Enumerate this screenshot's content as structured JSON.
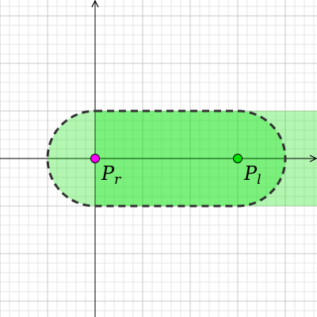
{
  "colors": {
    "minor_grid": "#e6e6e6",
    "major_grid": "#c8c8c8",
    "axis": "#000000",
    "band_fill": "#00e000",
    "band_fill_opacity": 0.3,
    "capsule_stroke": "#333333",
    "point_r_fill": "#ff00ff",
    "point_l_fill": "#00e600"
  },
  "axes": {
    "x_range": [
      -2,
      4.667
    ],
    "y_range": [
      -3.333,
      3.333
    ],
    "major_step": 1,
    "minor_step": 0.2
  },
  "band": {
    "x_start": 0,
    "y_min": -1,
    "y_max": 1
  },
  "capsule": {
    "center_a": [
      0,
      0
    ],
    "center_b": [
      3,
      0
    ],
    "radius": 1,
    "style": "dashed"
  },
  "points": [
    {
      "id": "P_r",
      "x": 0,
      "y": 0,
      "color": "#ff00ff",
      "label_main": "P",
      "label_sub": "r"
    },
    {
      "id": "P_l",
      "x": 3,
      "y": 0,
      "color": "#00e600",
      "label_main": "P",
      "label_sub": "l"
    }
  ]
}
